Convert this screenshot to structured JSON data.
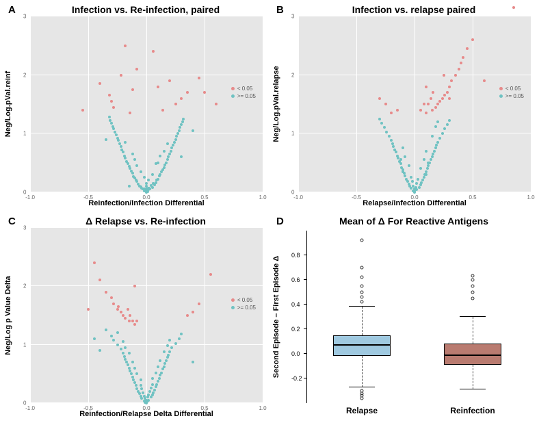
{
  "colors": {
    "plot_bg": "#e6e6e6",
    "grid": "#ffffff",
    "sig": "#e78a8a",
    "nonsig": "#6fc2c2",
    "box_relapse": "#9fc9e0",
    "box_reinfection": "#b97b70",
    "outlier": "#333333"
  },
  "legend": {
    "sig_label": "< 0.05",
    "nonsig_label": ">= 0.05"
  },
  "scatter_common": {
    "xlim": [
      -1.0,
      1.0
    ],
    "ylim": [
      0,
      3
    ],
    "xticks": [
      -1.0,
      -0.5,
      0,
      0.5,
      1.0
    ],
    "yticks": [
      0,
      1,
      2,
      3
    ],
    "tick_fontsize": 8,
    "label_fontsize": 11,
    "title_fontsize": 14,
    "point_size": 4
  },
  "panels": {
    "A": {
      "letter": "A",
      "title": "Infection vs. Re-infection, paired",
      "ylabel": "Neg/Log.pVal.reinf",
      "xlabel": "Reinfection/Infection Differential",
      "nonsig": [
        [
          -0.02,
          0.02
        ],
        [
          0.01,
          0.03
        ],
        [
          0.03,
          0.05
        ],
        [
          -0.04,
          0.06
        ],
        [
          0.05,
          0.08
        ],
        [
          -0.06,
          0.1
        ],
        [
          0.07,
          0.12
        ],
        [
          -0.03,
          0.05
        ],
        [
          0.02,
          0.07
        ],
        [
          -0.05,
          0.09
        ],
        [
          0.04,
          0.11
        ],
        [
          -0.07,
          0.14
        ],
        [
          0.08,
          0.16
        ],
        [
          -0.08,
          0.18
        ],
        [
          0.06,
          0.15
        ],
        [
          -0.09,
          0.2
        ],
        [
          0.1,
          0.22
        ],
        [
          -0.1,
          0.24
        ],
        [
          0.09,
          0.21
        ],
        [
          -0.11,
          0.26
        ],
        [
          0.11,
          0.28
        ],
        [
          0.12,
          0.3
        ],
        [
          -0.12,
          0.32
        ],
        [
          0.13,
          0.34
        ],
        [
          -0.13,
          0.36
        ],
        [
          0.14,
          0.38
        ],
        [
          -0.14,
          0.4
        ],
        [
          0.15,
          0.42
        ],
        [
          -0.15,
          0.44
        ],
        [
          0.16,
          0.46
        ],
        [
          -0.16,
          0.48
        ],
        [
          0.17,
          0.5
        ],
        [
          -0.17,
          0.52
        ],
        [
          0.18,
          0.55
        ],
        [
          -0.18,
          0.58
        ],
        [
          0.19,
          0.6
        ],
        [
          -0.19,
          0.62
        ],
        [
          0.2,
          0.65
        ],
        [
          -0.2,
          0.68
        ],
        [
          0.21,
          0.7
        ],
        [
          -0.21,
          0.72
        ],
        [
          0.22,
          0.75
        ],
        [
          -0.22,
          0.78
        ],
        [
          0.23,
          0.8
        ],
        [
          -0.23,
          0.82
        ],
        [
          0.24,
          0.85
        ],
        [
          -0.24,
          0.88
        ],
        [
          0.25,
          0.9
        ],
        [
          -0.25,
          0.92
        ],
        [
          0.26,
          0.95
        ],
        [
          -0.26,
          0.98
        ],
        [
          0.27,
          1.0
        ],
        [
          -0.27,
          1.02
        ],
        [
          0.28,
          1.05
        ],
        [
          -0.28,
          1.08
        ],
        [
          0.29,
          1.1
        ],
        [
          -0.29,
          1.12
        ],
        [
          0.3,
          1.15
        ],
        [
          -0.3,
          1.18
        ],
        [
          0.31,
          1.2
        ],
        [
          -0.31,
          1.22
        ],
        [
          0.32,
          1.25
        ],
        [
          -0.32,
          1.28
        ],
        [
          0.01,
          0.01
        ],
        [
          -0.01,
          0.02
        ],
        [
          0.015,
          0.04
        ],
        [
          -0.02,
          0.05
        ],
        [
          0.025,
          0.06
        ],
        [
          0.0,
          0.0
        ],
        [
          0.0,
          0.01
        ],
        [
          0.0,
          0.015
        ],
        [
          -0.15,
          0.1
        ],
        [
          0.3,
          0.6
        ],
        [
          -0.35,
          0.9
        ],
        [
          0.4,
          1.05
        ],
        [
          0.05,
          0.3
        ],
        [
          -0.05,
          0.35
        ],
        [
          0.1,
          0.5
        ],
        [
          -0.1,
          0.55
        ],
        [
          0.15,
          0.7
        ],
        [
          -0.08,
          0.45
        ],
        [
          0.08,
          0.48
        ],
        [
          0.12,
          0.62
        ],
        [
          -0.12,
          0.65
        ],
        [
          0.18,
          0.82
        ],
        [
          -0.18,
          0.85
        ],
        [
          0.0,
          0.05
        ],
        [
          0.0,
          0.1
        ],
        [
          0.0,
          0.15
        ],
        [
          0.02,
          0.2
        ],
        [
          -0.02,
          0.25
        ]
      ],
      "sig": [
        [
          -0.14,
          1.35
        ],
        [
          0.14,
          1.4
        ],
        [
          -0.28,
          1.45
        ],
        [
          0.25,
          1.5
        ],
        [
          -0.3,
          1.55
        ],
        [
          0.3,
          1.6
        ],
        [
          -0.32,
          1.65
        ],
        [
          0.35,
          1.7
        ],
        [
          -0.12,
          1.75
        ],
        [
          0.1,
          1.8
        ],
        [
          -0.4,
          1.85
        ],
        [
          0.45,
          1.95
        ],
        [
          -0.08,
          2.1
        ],
        [
          0.06,
          2.4
        ],
        [
          -0.18,
          2.5
        ],
        [
          0.2,
          1.9
        ],
        [
          -0.22,
          2.0
        ],
        [
          0.5,
          1.7
        ],
        [
          0.6,
          1.5
        ],
        [
          -0.55,
          1.4
        ]
      ]
    },
    "B": {
      "letter": "B",
      "title": "Infection vs. relapse paired",
      "ylabel": "Neg/Log.pVal.relapse",
      "xlabel": "Relapse/Infection Differential",
      "nonsig": [
        [
          -0.01,
          0.02
        ],
        [
          0.02,
          0.04
        ],
        [
          -0.03,
          0.06
        ],
        [
          0.04,
          0.08
        ],
        [
          -0.04,
          0.1
        ],
        [
          0.05,
          0.12
        ],
        [
          -0.05,
          0.14
        ],
        [
          0.06,
          0.16
        ],
        [
          -0.06,
          0.18
        ],
        [
          0.07,
          0.2
        ],
        [
          -0.07,
          0.22
        ],
        [
          0.08,
          0.25
        ],
        [
          -0.08,
          0.28
        ],
        [
          0.09,
          0.3
        ],
        [
          -0.09,
          0.32
        ],
        [
          0.1,
          0.35
        ],
        [
          -0.1,
          0.38
        ],
        [
          0.11,
          0.4
        ],
        [
          -0.11,
          0.42
        ],
        [
          0.12,
          0.45
        ],
        [
          -0.12,
          0.48
        ],
        [
          0.13,
          0.5
        ],
        [
          -0.13,
          0.52
        ],
        [
          0.14,
          0.55
        ],
        [
          -0.14,
          0.58
        ],
        [
          0.15,
          0.6
        ],
        [
          -0.15,
          0.62
        ],
        [
          0.16,
          0.65
        ],
        [
          -0.16,
          0.68
        ],
        [
          0.17,
          0.7
        ],
        [
          -0.17,
          0.72
        ],
        [
          0.18,
          0.75
        ],
        [
          -0.18,
          0.78
        ],
        [
          0.19,
          0.8
        ],
        [
          -0.19,
          0.82
        ],
        [
          0.2,
          0.85
        ],
        [
          -0.2,
          0.88
        ],
        [
          0.22,
          0.92
        ],
        [
          -0.22,
          0.95
        ],
        [
          0.24,
          1.0
        ],
        [
          -0.24,
          1.02
        ],
        [
          0.26,
          1.08
        ],
        [
          -0.26,
          1.1
        ],
        [
          0.28,
          1.15
        ],
        [
          -0.28,
          1.18
        ],
        [
          0.3,
          1.22
        ],
        [
          -0.3,
          1.25
        ],
        [
          0.0,
          0.0
        ],
        [
          0.0,
          0.02
        ],
        [
          0.0,
          0.05
        ],
        [
          0.01,
          0.08
        ],
        [
          -0.01,
          0.1
        ],
        [
          0.02,
          0.15
        ],
        [
          -0.02,
          0.18
        ],
        [
          0.03,
          0.22
        ],
        [
          -0.03,
          0.25
        ],
        [
          0.05,
          0.4
        ],
        [
          -0.05,
          0.45
        ],
        [
          0.08,
          0.55
        ],
        [
          -0.08,
          0.6
        ],
        [
          0.1,
          0.7
        ],
        [
          -0.1,
          0.75
        ],
        [
          0.15,
          0.95
        ],
        [
          0.18,
          1.12
        ],
        [
          0.2,
          1.2
        ],
        [
          0.1,
          0.3
        ],
        [
          -0.1,
          0.35
        ],
        [
          0.12,
          0.5
        ],
        [
          -0.12,
          0.55
        ],
        [
          0.0,
          0.01
        ]
      ],
      "sig": [
        [
          0.1,
          1.35
        ],
        [
          0.15,
          1.4
        ],
        [
          0.18,
          1.45
        ],
        [
          0.2,
          1.5
        ],
        [
          0.22,
          1.55
        ],
        [
          0.24,
          1.6
        ],
        [
          0.26,
          1.65
        ],
        [
          0.28,
          1.7
        ],
        [
          0.3,
          1.8
        ],
        [
          0.32,
          1.9
        ],
        [
          0.35,
          2.0
        ],
        [
          0.38,
          2.1
        ],
        [
          0.4,
          2.2
        ],
        [
          0.42,
          2.3
        ],
        [
          0.12,
          1.5
        ],
        [
          0.14,
          1.6
        ],
        [
          0.16,
          1.7
        ],
        [
          0.05,
          1.4
        ],
        [
          0.08,
          1.5
        ],
        [
          -0.15,
          1.4
        ],
        [
          -0.2,
          1.35
        ],
        [
          -0.25,
          1.5
        ],
        [
          -0.3,
          1.6
        ],
        [
          0.45,
          2.45
        ],
        [
          0.5,
          2.6
        ],
        [
          0.6,
          1.9
        ],
        [
          0.85,
          3.15
        ],
        [
          0.25,
          2.0
        ],
        [
          0.3,
          1.6
        ],
        [
          0.1,
          1.8
        ]
      ]
    },
    "C": {
      "letter": "C",
      "title": "Δ Relapse vs. Re-infection",
      "ylabel": "Neg/Log p Value Delta",
      "xlabel": "Reinfection/Relapse Delta Differential",
      "nonsig": [
        [
          -0.02,
          0.03
        ],
        [
          0.02,
          0.05
        ],
        [
          -0.04,
          0.08
        ],
        [
          0.04,
          0.1
        ],
        [
          -0.05,
          0.12
        ],
        [
          0.05,
          0.14
        ],
        [
          -0.06,
          0.16
        ],
        [
          0.06,
          0.18
        ],
        [
          -0.07,
          0.2
        ],
        [
          0.07,
          0.22
        ],
        [
          -0.08,
          0.25
        ],
        [
          0.08,
          0.28
        ],
        [
          -0.09,
          0.3
        ],
        [
          0.09,
          0.32
        ],
        [
          -0.1,
          0.35
        ],
        [
          0.1,
          0.38
        ],
        [
          -0.11,
          0.4
        ],
        [
          0.11,
          0.42
        ],
        [
          -0.12,
          0.45
        ],
        [
          0.12,
          0.48
        ],
        [
          -0.13,
          0.5
        ],
        [
          0.13,
          0.52
        ],
        [
          -0.14,
          0.55
        ],
        [
          0.14,
          0.58
        ],
        [
          -0.15,
          0.6
        ],
        [
          0.15,
          0.62
        ],
        [
          -0.16,
          0.65
        ],
        [
          0.16,
          0.68
        ],
        [
          -0.17,
          0.7
        ],
        [
          0.17,
          0.72
        ],
        [
          -0.18,
          0.75
        ],
        [
          0.18,
          0.78
        ],
        [
          -0.19,
          0.8
        ],
        [
          0.19,
          0.82
        ],
        [
          -0.2,
          0.85
        ],
        [
          0.2,
          0.88
        ],
        [
          -0.22,
          0.92
        ],
        [
          0.22,
          0.95
        ],
        [
          -0.25,
          1.0
        ],
        [
          0.25,
          1.02
        ],
        [
          -0.28,
          1.08
        ],
        [
          0.28,
          1.1
        ],
        [
          -0.3,
          1.15
        ],
        [
          0.3,
          1.18
        ],
        [
          -0.35,
          1.25
        ],
        [
          0.0,
          0.0
        ],
        [
          0.0,
          0.02
        ],
        [
          0.0,
          0.05
        ],
        [
          -0.01,
          0.08
        ],
        [
          0.01,
          0.1
        ],
        [
          -0.02,
          0.12
        ],
        [
          0.02,
          0.14
        ],
        [
          -0.03,
          0.18
        ],
        [
          0.03,
          0.2
        ],
        [
          -0.04,
          0.24
        ],
        [
          0.04,
          0.26
        ],
        [
          -0.05,
          0.3
        ],
        [
          0.05,
          0.32
        ],
        [
          -0.08,
          0.5
        ],
        [
          0.08,
          0.52
        ],
        [
          -0.1,
          0.6
        ],
        [
          0.1,
          0.62
        ],
        [
          -0.12,
          0.7
        ],
        [
          0.12,
          0.72
        ],
        [
          -0.15,
          0.85
        ],
        [
          0.15,
          0.88
        ],
        [
          -0.18,
          0.95
        ],
        [
          0.18,
          0.98
        ],
        [
          -0.2,
          1.05
        ],
        [
          0.2,
          1.08
        ],
        [
          -0.25,
          1.2
        ],
        [
          -0.05,
          0.4
        ],
        [
          0.05,
          0.42
        ],
        [
          -0.4,
          0.9
        ],
        [
          0.4,
          0.7
        ],
        [
          -0.45,
          1.1
        ],
        [
          -0.01,
          0.01
        ],
        [
          0.005,
          0.02
        ],
        [
          -0.005,
          0.015
        ]
      ],
      "sig": [
        [
          -0.1,
          1.35
        ],
        [
          -0.15,
          1.4
        ],
        [
          -0.18,
          1.45
        ],
        [
          -0.2,
          1.5
        ],
        [
          -0.22,
          1.55
        ],
        [
          -0.25,
          1.6
        ],
        [
          -0.28,
          1.7
        ],
        [
          -0.3,
          1.8
        ],
        [
          -0.12,
          1.4
        ],
        [
          -0.14,
          1.5
        ],
        [
          -0.16,
          1.6
        ],
        [
          -0.08,
          1.4
        ],
        [
          -0.35,
          1.9
        ],
        [
          -0.4,
          2.1
        ],
        [
          -0.45,
          2.4
        ],
        [
          0.35,
          1.5
        ],
        [
          0.4,
          1.55
        ],
        [
          0.45,
          1.7
        ],
        [
          0.55,
          2.2
        ],
        [
          -0.5,
          1.6
        ],
        [
          -0.24,
          1.65
        ],
        [
          -0.1,
          2.0
        ]
      ]
    }
  },
  "panel_D": {
    "letter": "D",
    "title": "Mean of Δ For Reactive Antigens",
    "ylabel": "Second Episode – First Episode Δ",
    "ylim": [
      -0.4,
      1.0
    ],
    "yticks": [
      -0.2,
      0,
      0.2,
      0.4,
      0.6,
      0.8
    ],
    "categories": [
      "Relapse",
      "Reinfection"
    ],
    "boxes": [
      {
        "label": "Relapse",
        "color": "#9fc9e0",
        "whisker_low": -0.27,
        "q1": -0.02,
        "median": 0.065,
        "q3": 0.15,
        "whisker_high": 0.38,
        "outliers": [
          -0.3,
          -0.32,
          -0.34,
          -0.36,
          0.42,
          0.46,
          0.5,
          0.55,
          0.62,
          0.7,
          0.92
        ]
      },
      {
        "label": "Reinfection",
        "color": "#b97b70",
        "whisker_low": -0.29,
        "q1": -0.09,
        "median": -0.02,
        "q3": 0.08,
        "whisker_high": 0.3,
        "outliers": [
          0.45,
          0.5,
          0.55,
          0.6,
          0.63
        ]
      }
    ]
  }
}
